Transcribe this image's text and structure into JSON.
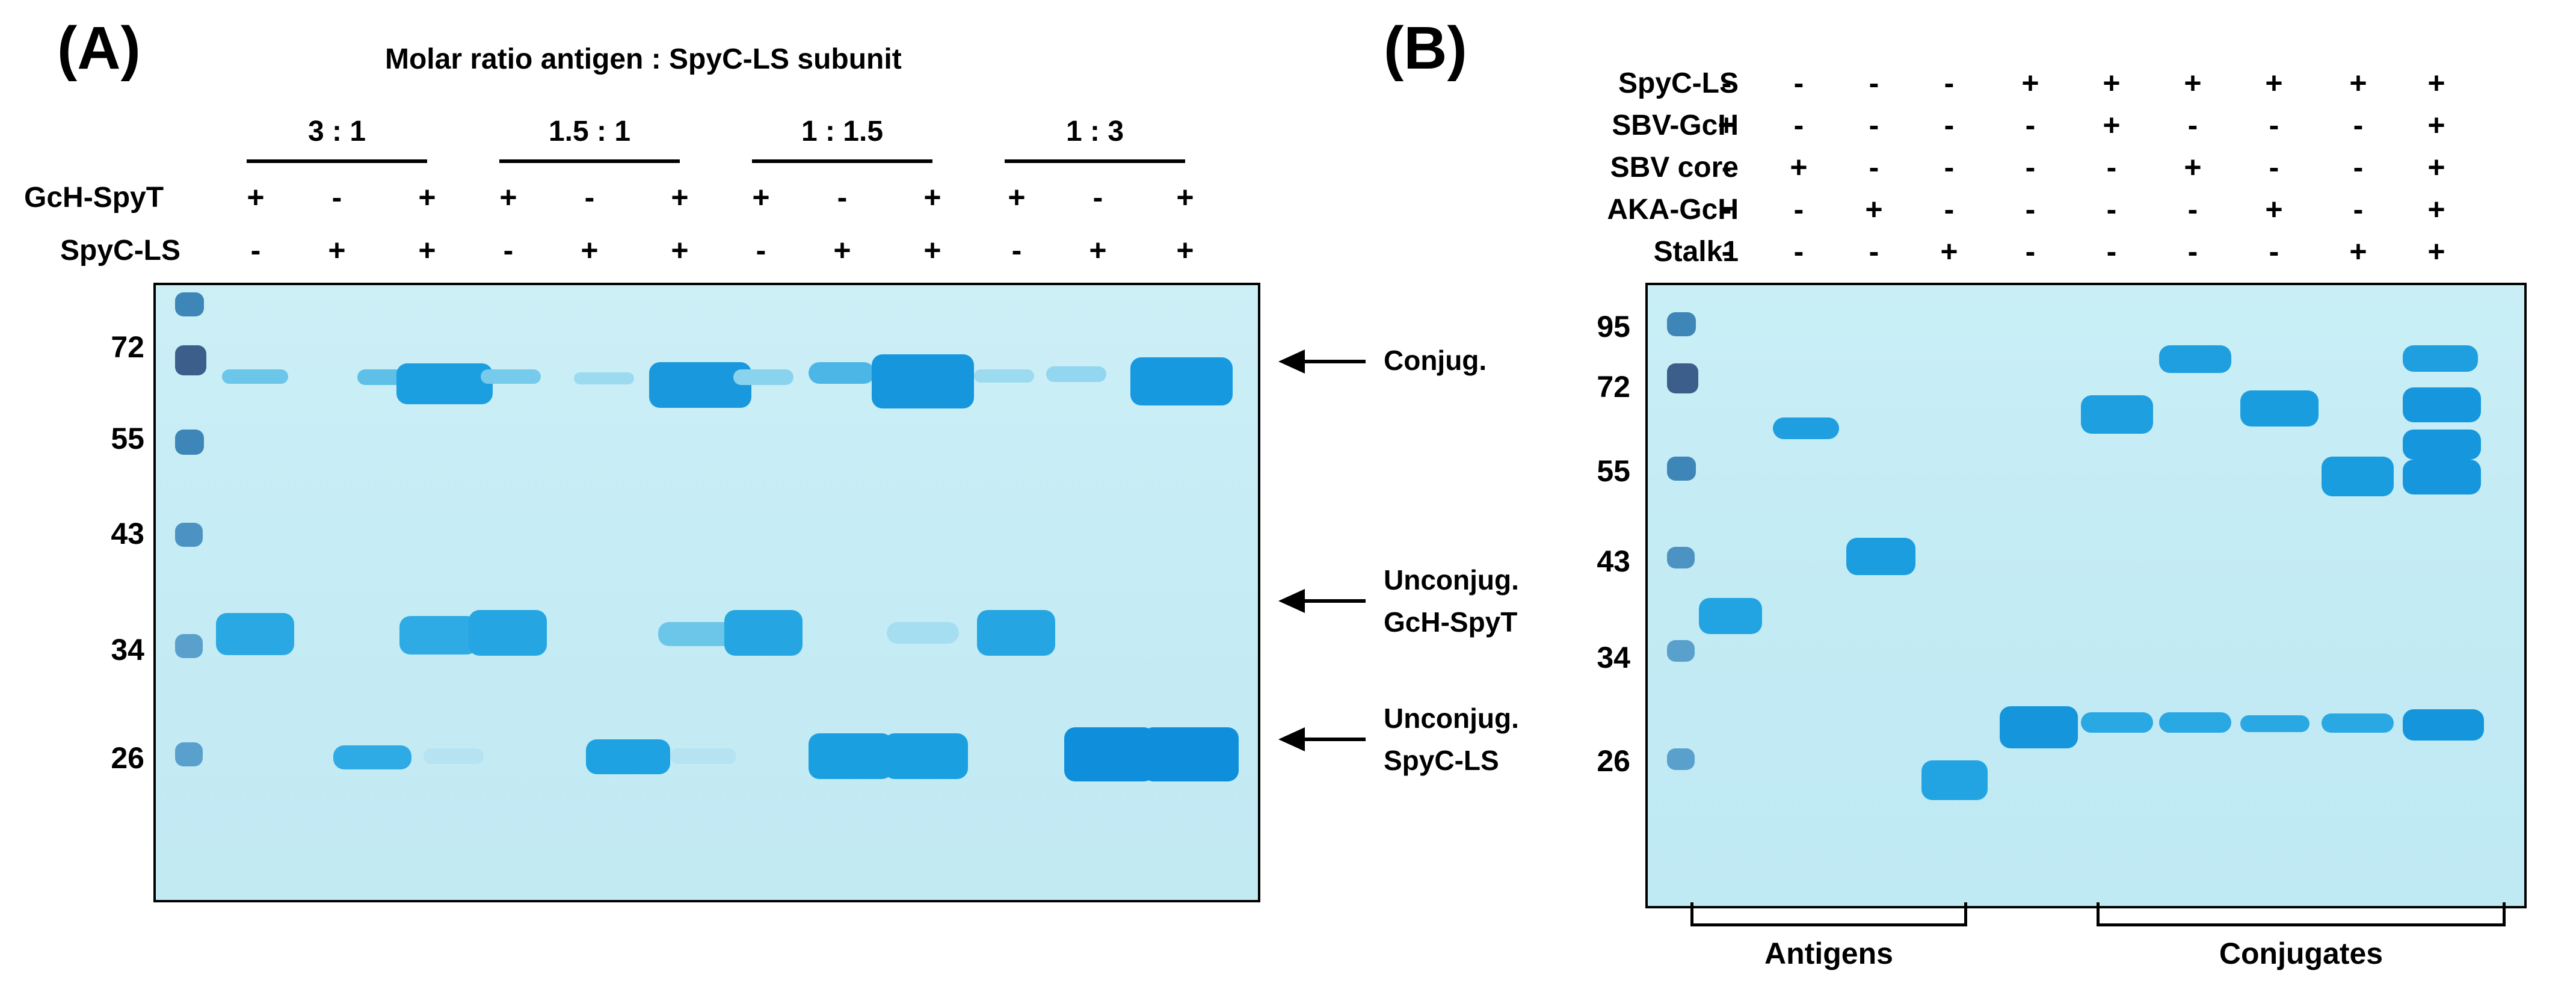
{
  "panel_a": {
    "letter": "(A)",
    "title": "Molar ratio antigen : SpyC-LS subunit",
    "ratios": [
      "3 : 1",
      "1.5 : 1",
      "1 : 1.5",
      "1 : 3"
    ],
    "row_labels": [
      "GcH-SpyT",
      "SpyC-LS"
    ],
    "gch_spyt_signs": [
      "+",
      "-",
      "+",
      "+",
      "-",
      "+",
      "+",
      "-",
      "+",
      "+",
      "-",
      "+"
    ],
    "spyc_ls_signs": [
      "-",
      "+",
      "+",
      "-",
      "+",
      "+",
      "-",
      "+",
      "+",
      "-",
      "+",
      "+"
    ],
    "mw_markers": [
      "72",
      "55",
      "43",
      "34",
      "26"
    ],
    "arrows": {
      "conjug": "Conjug.",
      "unconj_gch_line1": "Unconjug.",
      "unconj_gch_line2": "GcH-SpyT",
      "unconj_spyc_line1": "Unconjug.",
      "unconj_spyc_line2": "SpyC-LS"
    }
  },
  "panel_b": {
    "letter": "(B)",
    "row_labels": [
      "SpyC-LS",
      "SBV-GcH",
      "SBV core",
      "AKA-GcH",
      "Stalk1"
    ],
    "rows": [
      [
        "-",
        "-",
        "-",
        "-",
        "+",
        "+",
        "+",
        "+",
        "+",
        "+"
      ],
      [
        "+",
        "-",
        "-",
        "-",
        "-",
        "+",
        "-",
        "-",
        "-",
        "+"
      ],
      [
        "-",
        "+",
        "-",
        "-",
        "-",
        "-",
        "+",
        "-",
        "-",
        "+"
      ],
      [
        "-",
        "-",
        "+",
        "-",
        "-",
        "-",
        "-",
        "+",
        "-",
        "+"
      ],
      [
        "-",
        "-",
        "-",
        "+",
        "-",
        "-",
        "-",
        "-",
        "+",
        "+"
      ]
    ],
    "mw_markers": [
      "95",
      "72",
      "55",
      "43",
      "34",
      "26"
    ],
    "groups": [
      "Antigens",
      "Conjugates"
    ]
  },
  "colors": {
    "band_strong": "#1a9ee0",
    "band_mid": "#3bb5e8",
    "band_faint": "#8fd6ef",
    "ladder": "#3f6f9c",
    "gel_bg": "#c6ecf5"
  }
}
